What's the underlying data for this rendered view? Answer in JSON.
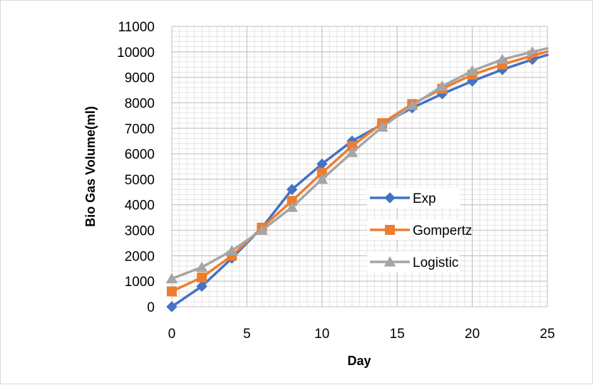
{
  "chart_data": {
    "type": "line",
    "title": "",
    "xlabel": "Day",
    "ylabel": "Bio Gas Volume(ml)",
    "xlim": [
      0,
      25
    ],
    "ylim": [
      0,
      11000
    ],
    "x_ticks": [
      0,
      5,
      10,
      15,
      20,
      25
    ],
    "y_ticks": [
      0,
      1000,
      2000,
      3000,
      4000,
      5000,
      6000,
      7000,
      8000,
      9000,
      10000,
      11000
    ],
    "grid": true,
    "legend_position": "center-right",
    "x": [
      0,
      2,
      4,
      6,
      8,
      10,
      12,
      14,
      16,
      18,
      20,
      22,
      24
    ],
    "series": [
      {
        "name": "Exp",
        "color": "#4472c4",
        "marker": "diamond",
        "values": [
          0,
          800,
          1900,
          3100,
          4600,
          5600,
          6500,
          7150,
          7800,
          8350,
          8850,
          9300,
          9700
        ]
      },
      {
        "name": "Gompertz",
        "color": "#ed7d31",
        "marker": "square",
        "values": [
          600,
          1150,
          2000,
          3100,
          4150,
          5250,
          6300,
          7200,
          7950,
          8550,
          9100,
          9500,
          9850
        ]
      },
      {
        "name": "Logistic",
        "color": "#a5a5a5",
        "marker": "triangle",
        "values": [
          1100,
          1550,
          2200,
          3000,
          3900,
          5000,
          6050,
          7050,
          7900,
          8650,
          9250,
          9700,
          10000
        ]
      }
    ]
  }
}
